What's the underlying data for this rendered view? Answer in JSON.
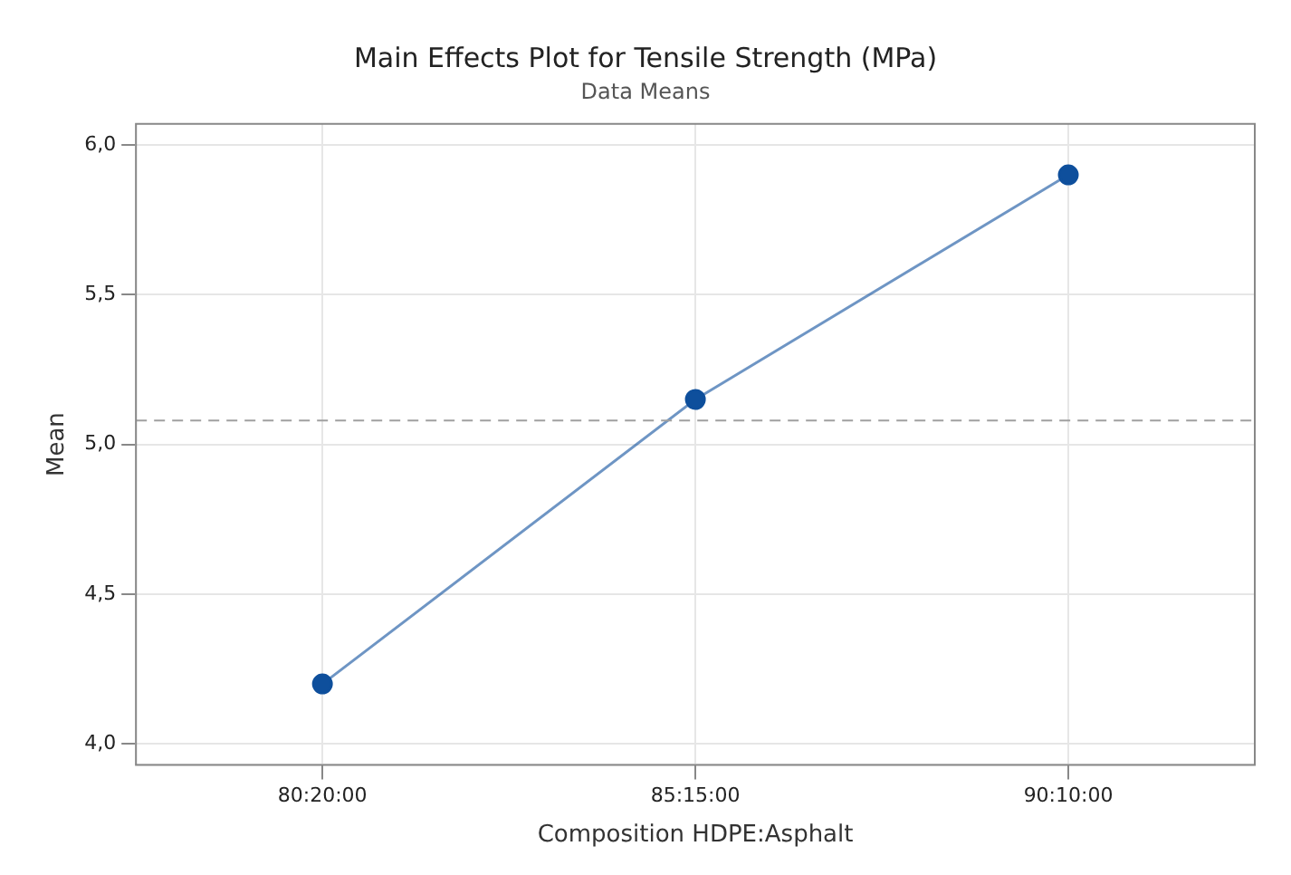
{
  "chart_data": {
    "type": "line",
    "title": "Main Effects Plot for Tensile Strength (MPa)",
    "subtitle": "Data Means",
    "xlabel": "Composition HDPE:Asphalt",
    "ylabel": "Mean",
    "categories": [
      "80:20:00",
      "85:15:00",
      "90:10:00"
    ],
    "series": [
      {
        "color": "#0e4f9c",
        "values": [
          4.2,
          5.15,
          5.9
        ]
      }
    ],
    "ylim": [
      3.93,
      6.07
    ],
    "yticks": [
      {
        "value": 4,
        "label": "4,0"
      },
      {
        "value": 4.5,
        "label": "4,5"
      },
      {
        "value": 5,
        "label": "5,0"
      },
      {
        "value": 5.5,
        "label": "5,5"
      },
      {
        "value": 6,
        "label": "6,0"
      }
    ],
    "ref_lines": [
      {
        "axis": "y",
        "value": 5.08,
        "color": "#a0a0a0",
        "line_style": "dashed"
      }
    ],
    "grid": true,
    "legend": false,
    "marker": "circle",
    "line_style": "solid"
  }
}
